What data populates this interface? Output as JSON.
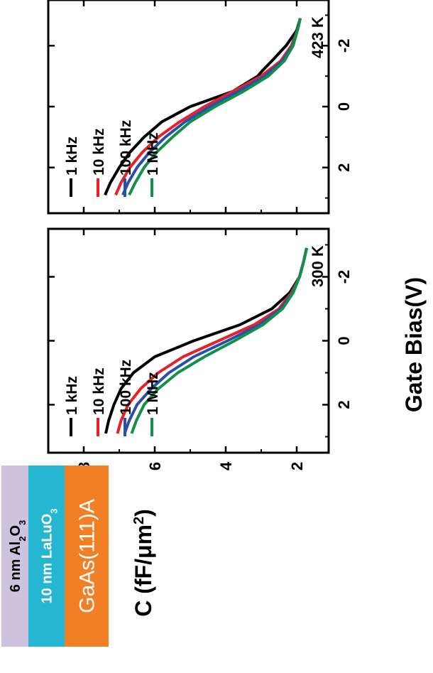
{
  "shared_axes": {
    "x_label": "Gate Bias(V)",
    "y_label_main": "C (fF/μm",
    "y_label_sup": "2",
    "y_label_tail": ")"
  },
  "stack": {
    "layers": [
      {
        "text": "6 nm Al",
        "sub": "2",
        "text2": "O",
        "sub2": "3",
        "color": "#cdc3df",
        "text_color": "#000000"
      },
      {
        "text": "10 nm LaLuO",
        "sub": "3",
        "text2": "",
        "sub2": "",
        "color": "#25b6d2",
        "text_color": "#ffffff"
      },
      {
        "text": "GaAs(111)A",
        "sub": "",
        "text2": "",
        "sub2": "",
        "color": "#f07f25",
        "text_color": "#ffffff"
      }
    ]
  },
  "chart_data": [
    {
      "type": "line",
      "annotation": "300 K",
      "xlim": [
        -3.5,
        3.5
      ],
      "ylim": [
        1.1,
        9.0
      ],
      "x_ticks": [
        -2,
        0,
        2
      ],
      "y_ticks": [
        2,
        4,
        6,
        8
      ],
      "legend": "top-left",
      "series": [
        {
          "name": "1 kHz",
          "color": "#000000",
          "points": [
            [
              -2.9,
              1.72
            ],
            [
              -2.5,
              1.8
            ],
            [
              -2.0,
              1.92
            ],
            [
              -1.5,
              2.2
            ],
            [
              -1.0,
              2.7
            ],
            [
              -0.5,
              3.6
            ],
            [
              0.0,
              4.9
            ],
            [
              0.5,
              6.0
            ],
            [
              1.0,
              6.6
            ],
            [
              1.5,
              6.95
            ],
            [
              2.0,
              7.15
            ],
            [
              2.5,
              7.3
            ],
            [
              2.9,
              7.38
            ]
          ]
        },
        {
          "name": "10 kHz",
          "color": "#e8202a",
          "points": [
            [
              -2.9,
              1.72
            ],
            [
              -2.5,
              1.8
            ],
            [
              -2.0,
              1.92
            ],
            [
              -1.5,
              2.15
            ],
            [
              -1.0,
              2.5
            ],
            [
              -0.5,
              3.2
            ],
            [
              0.0,
              4.2
            ],
            [
              0.5,
              5.2
            ],
            [
              1.0,
              5.9
            ],
            [
              1.5,
              6.4
            ],
            [
              2.0,
              6.75
            ],
            [
              2.5,
              6.95
            ],
            [
              2.9,
              7.05
            ]
          ]
        },
        {
          "name": "100 kHz",
          "color": "#2b4fa8",
          "points": [
            [
              -2.9,
              1.72
            ],
            [
              -2.5,
              1.8
            ],
            [
              -2.0,
              1.92
            ],
            [
              -1.5,
              2.12
            ],
            [
              -1.0,
              2.45
            ],
            [
              -0.5,
              3.05
            ],
            [
              0.0,
              3.95
            ],
            [
              0.5,
              4.9
            ],
            [
              1.0,
              5.6
            ],
            [
              1.5,
              6.1
            ],
            [
              2.0,
              6.5
            ],
            [
              2.5,
              6.72
            ],
            [
              2.9,
              6.85
            ]
          ]
        },
        {
          "name": "1 MHz",
          "color": "#11904a",
          "points": [
            [
              -2.9,
              1.72
            ],
            [
              -2.5,
              1.8
            ],
            [
              -2.0,
              1.92
            ],
            [
              -1.5,
              2.1
            ],
            [
              -1.0,
              2.4
            ],
            [
              -0.5,
              2.95
            ],
            [
              0.0,
              3.75
            ],
            [
              0.5,
              4.6
            ],
            [
              1.0,
              5.35
            ],
            [
              1.5,
              5.9
            ],
            [
              2.0,
              6.3
            ],
            [
              2.5,
              6.52
            ],
            [
              2.9,
              6.65
            ]
          ]
        }
      ]
    },
    {
      "type": "line",
      "annotation": "423 K",
      "xlim": [
        -3.5,
        3.5
      ],
      "ylim": [
        1.1,
        9.0
      ],
      "x_ticks": [
        -2,
        0,
        2
      ],
      "y_ticks": [
        2,
        4,
        6,
        8
      ],
      "legend": "top-left",
      "series": [
        {
          "name": "1 kHz",
          "color": "#000000",
          "points": [
            [
              -2.9,
              1.9
            ],
            [
              -2.5,
              2.0
            ],
            [
              -2.0,
              2.3
            ],
            [
              -1.5,
              2.7
            ],
            [
              -1.2,
              2.95
            ],
            [
              -1.0,
              3.1
            ],
            [
              -0.5,
              3.8
            ],
            [
              0.0,
              5.0
            ],
            [
              0.5,
              5.8
            ],
            [
              1.0,
              6.3
            ],
            [
              1.5,
              6.7
            ],
            [
              2.0,
              7.0
            ],
            [
              2.5,
              7.25
            ],
            [
              2.9,
              7.4
            ]
          ]
        },
        {
          "name": "10 kHz",
          "color": "#e8202a",
          "points": [
            [
              -2.9,
              1.9
            ],
            [
              -2.5,
              1.98
            ],
            [
              -2.0,
              2.15
            ],
            [
              -1.5,
              2.45
            ],
            [
              -1.0,
              3.0
            ],
            [
              -0.5,
              3.8
            ],
            [
              0.0,
              4.6
            ],
            [
              0.5,
              5.3
            ],
            [
              1.0,
              5.9
            ],
            [
              1.5,
              6.35
            ],
            [
              2.0,
              6.7
            ],
            [
              2.5,
              6.95
            ],
            [
              2.9,
              7.1
            ]
          ]
        },
        {
          "name": "100 kHz",
          "color": "#2b4fa8",
          "points": [
            [
              -2.9,
              1.9
            ],
            [
              -2.5,
              1.98
            ],
            [
              -2.0,
              2.12
            ],
            [
              -1.5,
              2.4
            ],
            [
              -1.0,
              2.9
            ],
            [
              -0.5,
              3.65
            ],
            [
              0.0,
              4.45
            ],
            [
              0.5,
              5.15
            ],
            [
              1.0,
              5.7
            ],
            [
              1.5,
              6.15
            ],
            [
              2.0,
              6.5
            ],
            [
              2.5,
              6.75
            ],
            [
              2.9,
              6.9
            ]
          ]
        },
        {
          "name": "1 MHz",
          "color": "#11904a",
          "points": [
            [
              -2.9,
              1.9
            ],
            [
              -2.5,
              1.98
            ],
            [
              -2.0,
              2.1
            ],
            [
              -1.5,
              2.35
            ],
            [
              -1.0,
              2.8
            ],
            [
              -0.5,
              3.5
            ],
            [
              0.0,
              4.3
            ],
            [
              0.5,
              5.0
            ],
            [
              1.0,
              5.5
            ],
            [
              1.5,
              5.95
            ],
            [
              2.0,
              6.3
            ],
            [
              2.5,
              6.55
            ],
            [
              2.9,
              6.72
            ]
          ]
        }
      ]
    }
  ]
}
